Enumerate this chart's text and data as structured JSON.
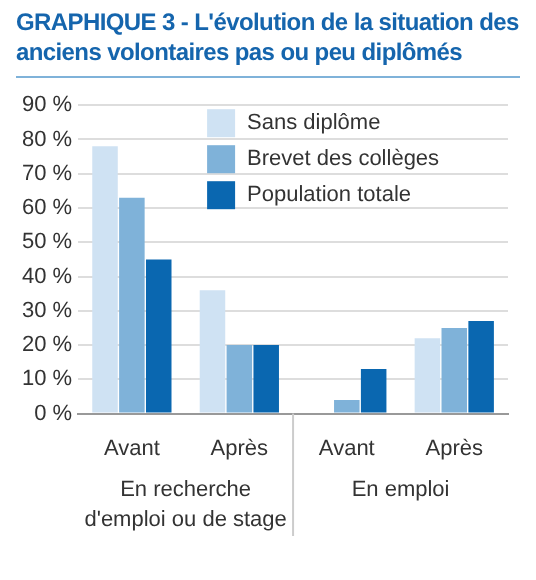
{
  "chart_data": {
    "type": "bar",
    "title": "GRAPHIQUE 3 - L'évolution de la situation des anciens volontaires pas ou peu diplômés",
    "categories": [
      "Avant",
      "Après",
      "Avant",
      "Après"
    ],
    "series": [
      {
        "name": "Sans diplôme",
        "color": "#cfe2f3",
        "values": [
          78,
          36,
          0,
          22
        ]
      },
      {
        "name": "Brevet des collèges",
        "color": "#7fb2d9",
        "values": [
          63,
          20,
          4,
          25
        ]
      },
      {
        "name": "Population totale",
        "color": "#0a67b0",
        "values": [
          45,
          20,
          13,
          27
        ]
      }
    ],
    "annotations": [
      "En recherche d'emploi ou de stage",
      "En emploi"
    ],
    "ylim": [
      0,
      90
    ],
    "yticks": [
      {
        "value": 0,
        "label": "0 %"
      },
      {
        "value": 10,
        "label": "10 %"
      },
      {
        "value": 20,
        "label": "20 %"
      },
      {
        "value": 30,
        "label": "30 %"
      },
      {
        "value": 40,
        "label": "40 %"
      },
      {
        "value": 50,
        "label": "50 %"
      },
      {
        "value": 60,
        "label": "60 %"
      },
      {
        "value": 70,
        "label": "70 %"
      },
      {
        "value": 80,
        "label": "80 %"
      },
      {
        "value": 90,
        "label": "90 %"
      }
    ],
    "grid": "y",
    "legend": "top"
  }
}
